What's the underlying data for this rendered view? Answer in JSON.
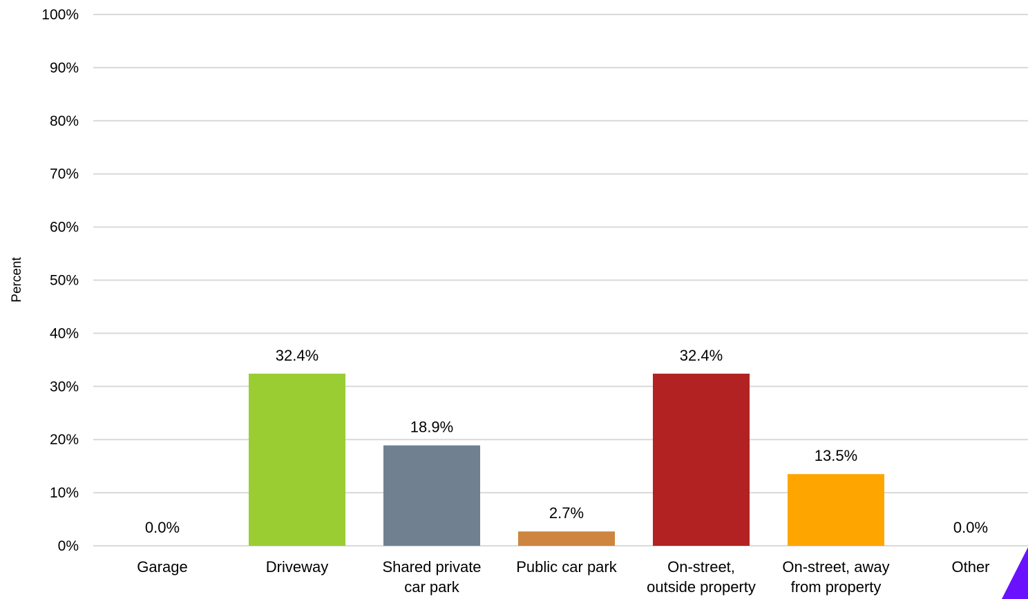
{
  "chart_data": {
    "type": "bar",
    "categories": [
      [
        "Garage"
      ],
      [
        "Driveway"
      ],
      [
        "Shared private",
        "car park"
      ],
      [
        "Public car park"
      ],
      [
        "On-street,",
        "outside property"
      ],
      [
        "On-street, away",
        "from property"
      ],
      [
        "Other"
      ]
    ],
    "values": [
      0.0,
      32.4,
      18.9,
      2.7,
      32.4,
      13.5,
      0.0
    ],
    "data_labels": [
      "0.0%",
      "32.4%",
      "18.9%",
      "2.7%",
      "32.4%",
      "13.5%",
      "0.0%"
    ],
    "colors": [
      "#9acd32",
      "#9acd32",
      "#708090",
      "#cd853f",
      "#b22222",
      "#ffa500",
      "#9acd32"
    ],
    "title": "",
    "xlabel": "",
    "ylabel": "Percent",
    "ylim": [
      0,
      100
    ],
    "yticks": [
      "0%",
      "10%",
      "20%",
      "30%",
      "40%",
      "50%",
      "60%",
      "70%",
      "80%",
      "90%",
      "100%"
    ],
    "grid": true,
    "legend": "none"
  },
  "decor": {
    "corner_color": "#6a11ff"
  }
}
